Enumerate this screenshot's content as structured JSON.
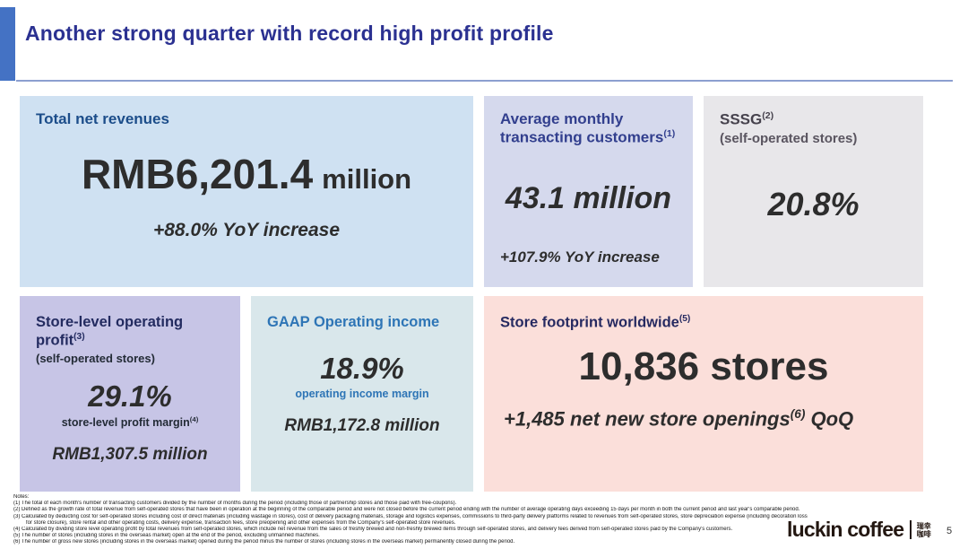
{
  "slide": {
    "title": "Another strong quarter with record high profit profile",
    "accent_color": "#4472c4",
    "title_color": "#2b3191"
  },
  "cards": {
    "total_net_revenues": {
      "header": "Total net revenues",
      "value": "RMB6,201.4",
      "unit": "million",
      "change": "+88.0% YoY increase",
      "bg_color": "#cfe1f2"
    },
    "avg_monthly_transacting_customers": {
      "header": "Average monthly transacting customers",
      "header_note": "(1)",
      "value": "43.1 million",
      "change": "+107.9% YoY increase",
      "bg_color": "#d5d9ed"
    },
    "sssg": {
      "header": "SSSG",
      "header_note": "(2)",
      "subheader": "(self-operated stores)",
      "value": "20.8%",
      "bg_color": "#e8e7ea"
    },
    "store_level_operating_profit": {
      "header": "Store-level operating profit",
      "header_note": "(3)",
      "subheader": "(self-operated stores)",
      "value": "29.1%",
      "caption": "store-level profit margin",
      "caption_note": "(4)",
      "amount": "RMB1,307.5 million",
      "bg_color": "#c7c5e6"
    },
    "gaap_operating_income": {
      "header": "GAAP Operating income",
      "value": "18.9%",
      "caption": "operating income margin",
      "amount": "RMB1,172.8 million",
      "bg_color": "#d9e7eb"
    },
    "store_footprint": {
      "header": "Store footprint worldwide",
      "header_note": "(5)",
      "value": "10,836",
      "unit": "stores",
      "change_pre": "+1,485 net new store openings",
      "change_note": "(6)",
      "change_post": " QoQ",
      "bg_color": "#fbdfda"
    }
  },
  "notes": {
    "label": "Notes:",
    "lines": [
      "(1) The total of each month's number of transacting customers divided by the number of months during the period (including those of partnership stores and those paid with free-coupons).",
      "(2) Defined as the growth rate of total revenue from self-operated stores that have been in operation at the beginning of the comparable period and were not closed before the current period ending with the number of average operating days exceeding 15 days per month in both the current period and last year's comparable period.",
      "(3) Calculated by deducting cost for self-operated stores including cost of direct materials (including wastage in stores), cost of delivery packaging materials, storage and logistics expenses, commissions to third-party delivery platforms related to revenues from self-operated stores, store depreciation expense (including decoration loss",
      "for store closure), store rental and other operating costs, delivery expense, transaction fees, store preopening and other expenses from the Company's self-operated store revenues.",
      "(4) Calculated by dividing store level operating profit by total revenues from self-operated stores, which include net revenue from the sales of freshly brewed and non-freshly brewed items through self-operated stores, and delivery fees derived from self-operated stores paid by the Company's customers.",
      "(5) The number of stores (including stores in the overseas market) open at the end of the period, excluding unmanned machines.",
      "(6) The number of gross new stores (including stores in the overseas market) opened during the period minus the number of stores (including stores in the overseas market) permanently closed during the period."
    ]
  },
  "footer": {
    "logo_text": "luckin coffee",
    "logo_cn_line1": "瑞幸",
    "logo_cn_line2": "咖啡",
    "page_number": "5"
  }
}
